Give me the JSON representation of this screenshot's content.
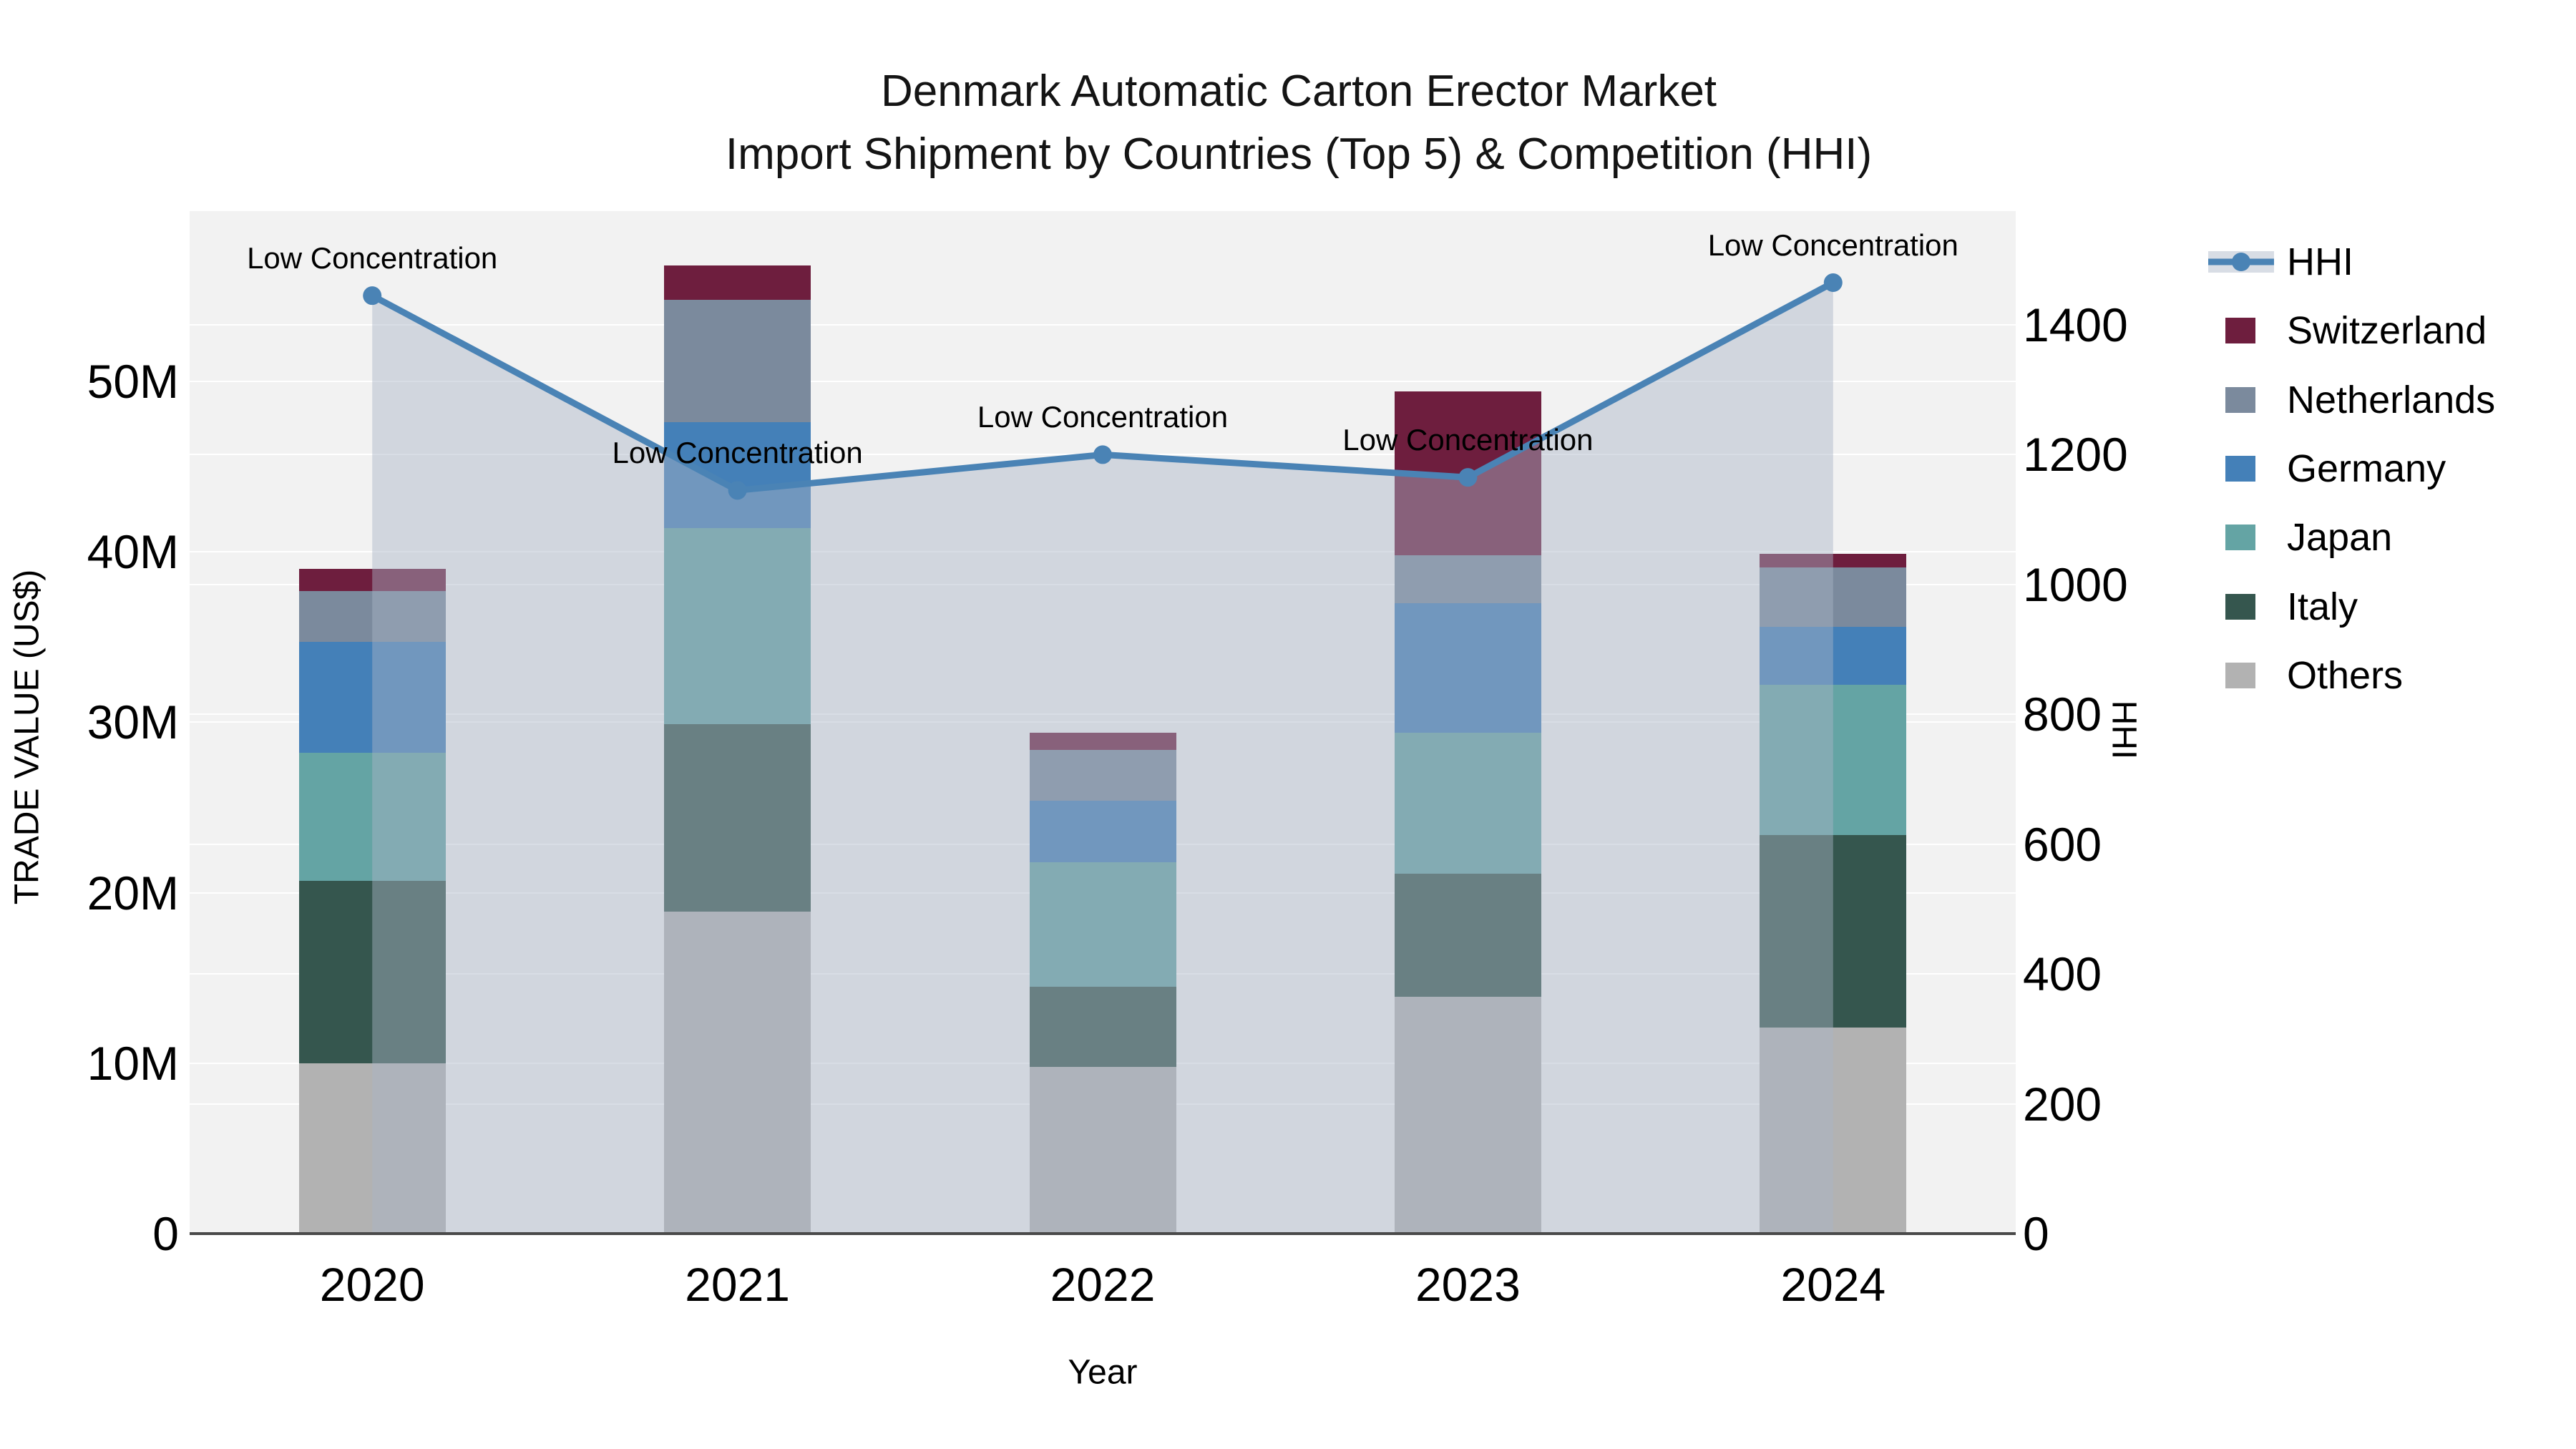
{
  "chart_data": {
    "type": "bar+line",
    "title_lines": [
      "Denmark Automatic Carton Erector Market",
      "Import Shipment by Countries (Top 5) & Competition (HHI)"
    ],
    "xlabel": "Year",
    "ylabel_left": "TRADE VALUE (US$)",
    "ylabel_right": "HHI",
    "categories": [
      "2020",
      "2021",
      "2022",
      "2023",
      "2024"
    ],
    "values_unit": "million US$",
    "bar_series": [
      {
        "name": "Switzerland",
        "color": "#6e1e3e",
        "values": [
          1.3,
          2.0,
          1.0,
          9.6,
          0.8
        ]
      },
      {
        "name": "Netherlands",
        "color": "#7b8a9d",
        "values": [
          3.0,
          7.2,
          3.0,
          2.8,
          3.5
        ]
      },
      {
        "name": "Germany",
        "color": "#4480b8",
        "values": [
          6.5,
          6.2,
          3.6,
          7.6,
          3.4
        ]
      },
      {
        "name": "Japan",
        "color": "#64a4a4",
        "values": [
          7.5,
          11.5,
          7.3,
          8.3,
          8.8
        ]
      },
      {
        "name": "Italy",
        "color": "#35564e",
        "values": [
          10.7,
          11.0,
          4.7,
          7.2,
          11.3
        ]
      },
      {
        "name": "Others",
        "color": "#b2b2b2",
        "values": [
          10.0,
          18.9,
          9.8,
          13.9,
          12.1
        ]
      }
    ],
    "bar_totals_musd": [
      39.0,
      56.8,
      29.4,
      49.4,
      39.9
    ],
    "line_series": {
      "name": "HHI",
      "color": "#4a83b5",
      "fill_color": "rgba(168,180,198,0.45)",
      "values": [
        1445,
        1145,
        1200,
        1165,
        1465
      ]
    },
    "annotations": [
      {
        "x": "2020",
        "text": "Low Concentration"
      },
      {
        "x": "2021",
        "text": "Low Concentration"
      },
      {
        "x": "2022",
        "text": "Low Concentration"
      },
      {
        "x": "2023",
        "text": "Low Concentration"
      },
      {
        "x": "2024",
        "text": "Low Concentration"
      }
    ],
    "y_left_ticks": [
      {
        "label": "0",
        "value": 0
      },
      {
        "label": "10M",
        "value": 10
      },
      {
        "label": "20M",
        "value": 20
      },
      {
        "label": "30M",
        "value": 30
      },
      {
        "label": "40M",
        "value": 40
      },
      {
        "label": "50M",
        "value": 50
      }
    ],
    "y_right_ticks": [
      {
        "label": "0",
        "value": 0
      },
      {
        "label": "200",
        "value": 200
      },
      {
        "label": "400",
        "value": 400
      },
      {
        "label": "600",
        "value": 600
      },
      {
        "label": "800",
        "value": 800
      },
      {
        "label": "1000",
        "value": 1000
      },
      {
        "label": "1200",
        "value": 1200
      },
      {
        "label": "1400",
        "value": 1400
      }
    ],
    "y_left_range_musd": [
      0,
      60
    ],
    "y_right_range": [
      0,
      1575
    ],
    "grid": true,
    "legend_position": "right",
    "plot_bg": "#f2f2f2",
    "grid_color": "#ffffff",
    "axis_line_color": "#4a4a4a"
  }
}
